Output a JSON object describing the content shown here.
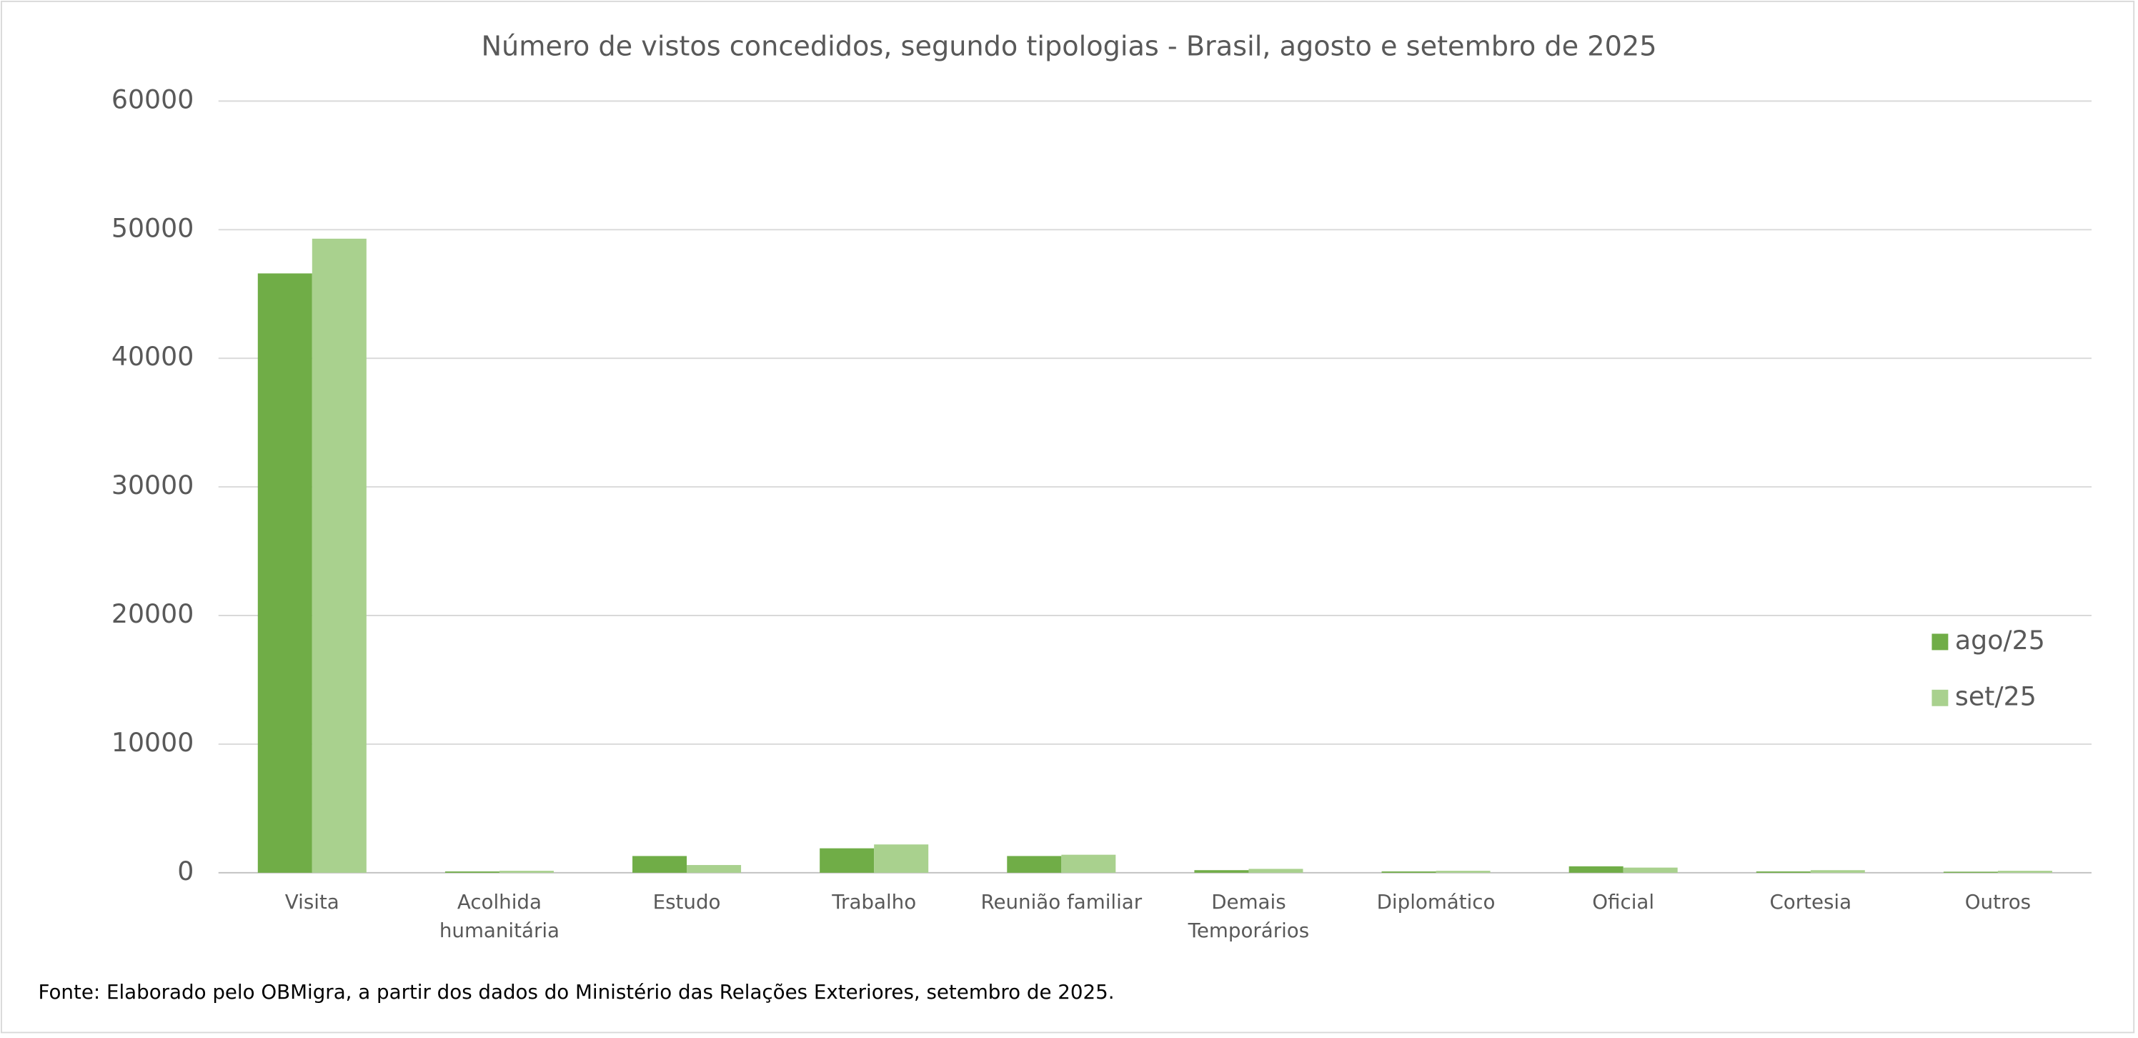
{
  "chart_data": {
    "type": "bar",
    "title": "Número de vistos concedidos, segundo tipologias - Brasil, agosto e setembro de 2025",
    "categories": [
      "Visita",
      "Acolhida humanitária",
      "Estudo",
      "Trabalho",
      "Reunião familiar",
      "Demais Temporários",
      "Diplomático",
      "Oficial",
      "Cortesia",
      "Outros"
    ],
    "series": [
      {
        "name": "ago/25",
        "color": "#70ad47",
        "values": [
          46600,
          100,
          1300,
          1900,
          1300,
          200,
          100,
          500,
          100,
          80
        ]
      },
      {
        "name": "set/25",
        "color": "#a9d18e",
        "values": [
          49300,
          150,
          600,
          2200,
          1400,
          300,
          150,
          400,
          200,
          150
        ]
      }
    ],
    "ylim": [
      0,
      60000
    ],
    "yticks": [
      0,
      10000,
      20000,
      30000,
      40000,
      50000,
      60000
    ],
    "grid": true,
    "legend": "right",
    "source": "Fonte: Elaborado pelo OBMigra, a partir dos dados do Ministério das Relações Exteriores, setembro de 2025."
  }
}
